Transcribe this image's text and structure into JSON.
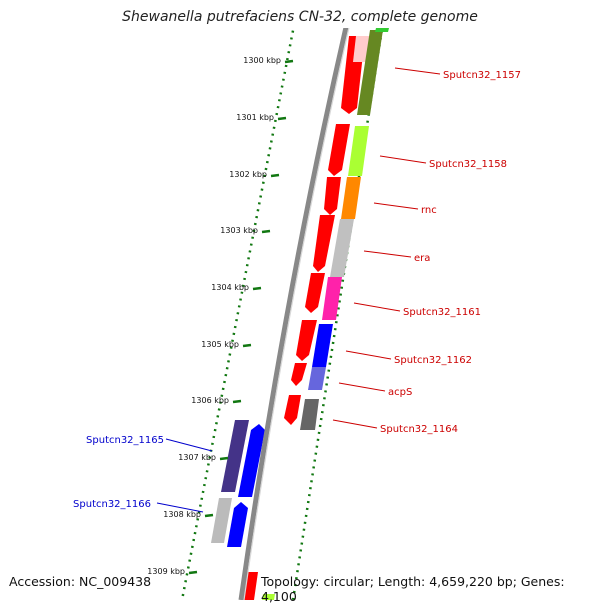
{
  "title": "Shewanella putrefaciens CN-32, complete genome",
  "footer": {
    "accession": "Accession: NC_009438",
    "topology": "Topology: circular; Length: 4,659,220 bp; Genes: 4,100"
  },
  "scale": {
    "tick_labels": [
      "1300 kbp",
      "1301 kbp",
      "1302 kbp",
      "1303 kbp",
      "1304 kbp",
      "1305 kbp",
      "1306 kbp",
      "1307 kbp",
      "1308 kbp",
      "1309 kbp"
    ]
  },
  "genes": [
    {
      "label": "Sputcn32_1157",
      "color_hex": "#cc0000"
    },
    {
      "label": "Sputcn32_1158",
      "color_hex": "#cc0000"
    },
    {
      "label": "rnc",
      "color_hex": "#cc0000"
    },
    {
      "label": "era",
      "color_hex": "#cc0000"
    },
    {
      "label": "Sputcn32_1161",
      "color_hex": "#cc0000"
    },
    {
      "label": "Sputcn32_1162",
      "color_hex": "#cc0000"
    },
    {
      "label": "acpS",
      "color_hex": "#cc0000"
    },
    {
      "label": "Sputcn32_1164",
      "color_hex": "#cc0000"
    },
    {
      "label": "Sputcn32_1165",
      "color_hex": "#0000cc"
    },
    {
      "label": "Sputcn32_1166",
      "color_hex": "#0000cc"
    }
  ],
  "colors": {
    "forward_strand": "#ff0000",
    "reverse_strand": "#0000ff",
    "tick_marks": "#117711",
    "backbone": "#888888"
  }
}
